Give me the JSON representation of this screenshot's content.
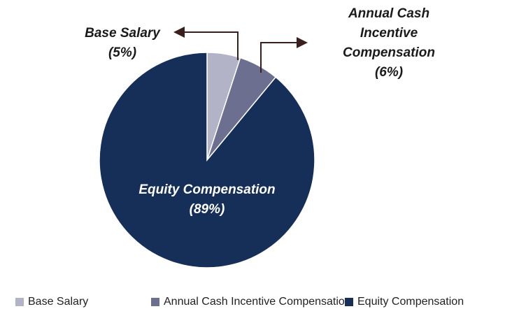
{
  "chart_data": {
    "type": "pie",
    "categories": [
      "Base Salary",
      "Annual Cash Incentive Compensation",
      "Equity Compensation"
    ],
    "values": [
      5,
      6,
      89
    ],
    "value_labels": [
      "(5%)",
      "(6%)",
      "(89%)"
    ],
    "colors": [
      "#b2b3c7",
      "#6c6f8f",
      "#152f58"
    ],
    "legend": "bottom"
  }
}
